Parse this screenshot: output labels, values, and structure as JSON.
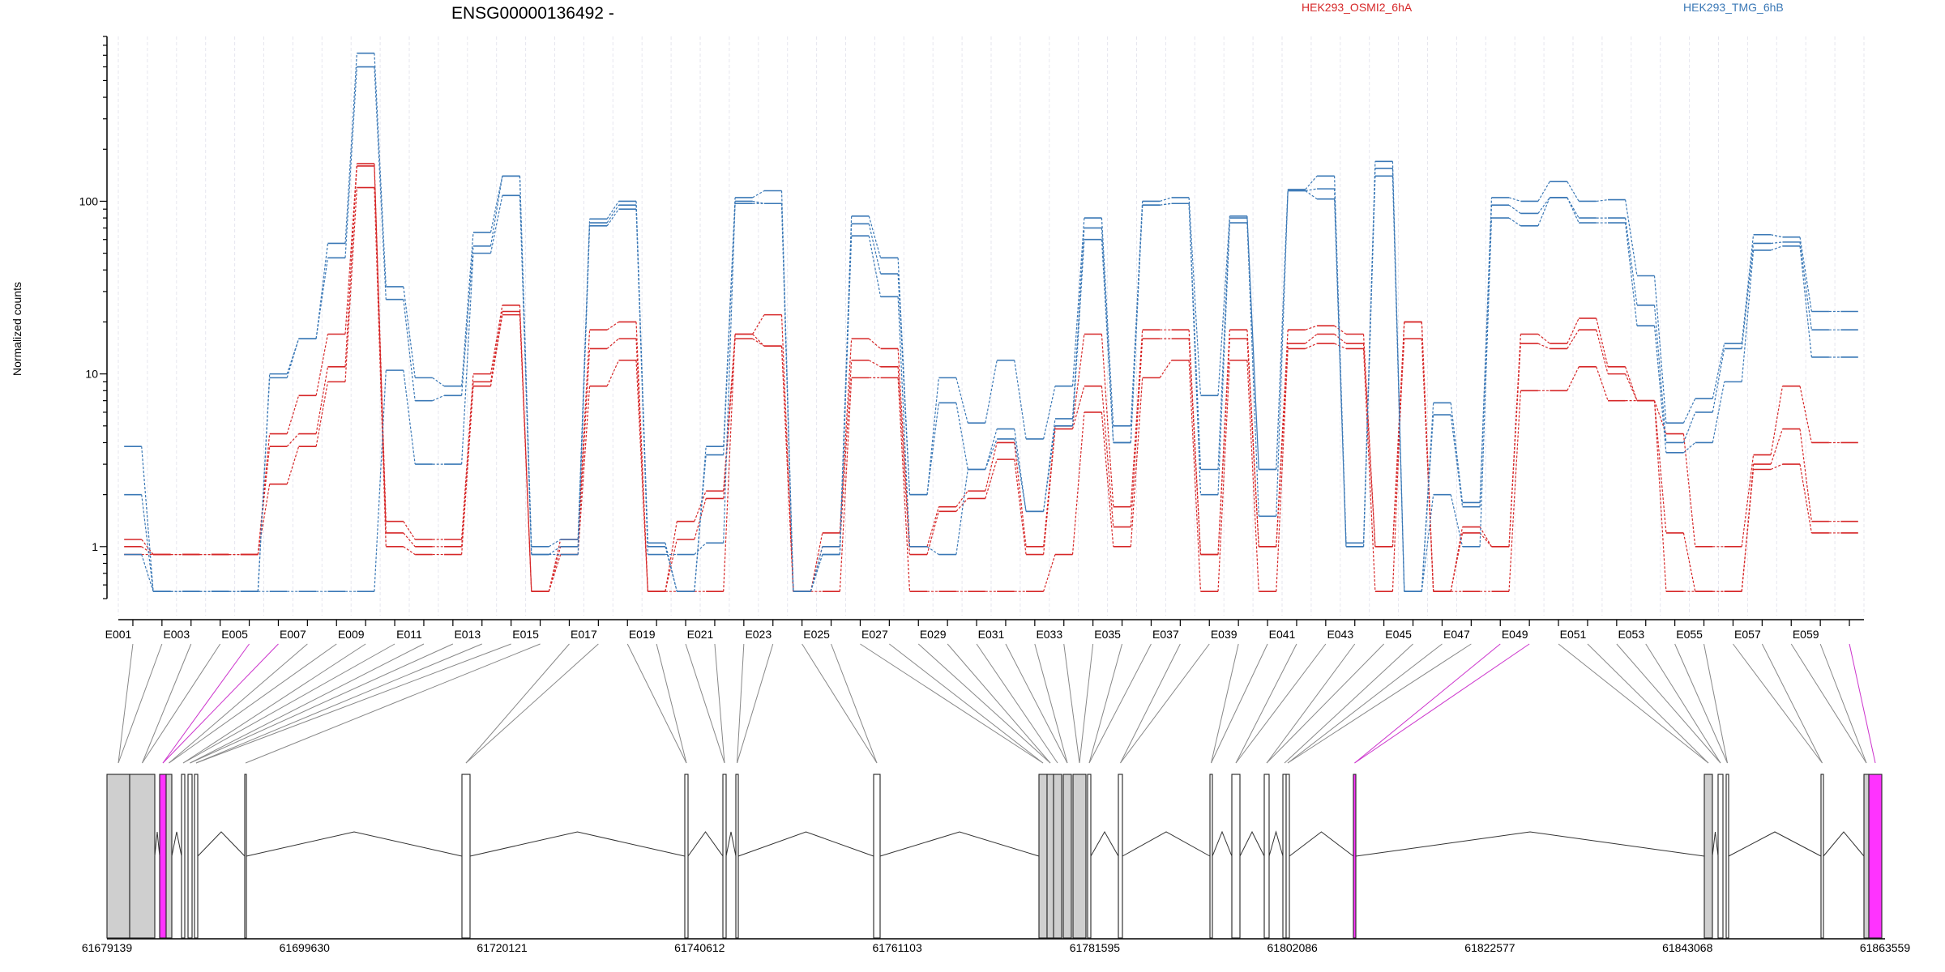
{
  "chart_data": {
    "type": "line",
    "title": "ENSG00000136492 -",
    "xlabel": "",
    "ylabel": "Normalized counts",
    "yscale": "log",
    "ylim": [
      0.5,
      900
    ],
    "y_ticks": [
      {
        "value": 1,
        "label": "1"
      },
      {
        "value": 10,
        "label": "10"
      },
      {
        "value": 100,
        "label": "100"
      }
    ],
    "legend": [
      {
        "name": "HEK293_OSMI2_6hA",
        "color": "#d62728"
      },
      {
        "name": "HEK293_TMG_6hB",
        "color": "#3a78b6"
      }
    ],
    "grid": true,
    "categories": [
      "E001",
      "E002",
      "E003",
      "E004",
      "E005",
      "E006",
      "E007",
      "E008",
      "E009",
      "E010",
      "E011",
      "E012",
      "E013",
      "E014",
      "E015",
      "E016",
      "E017",
      "E018",
      "E019",
      "E020",
      "E021",
      "E022",
      "E023",
      "E024",
      "E025",
      "E026",
      "E027",
      "E028",
      "E029",
      "E030",
      "E031",
      "E032",
      "E033",
      "E034",
      "E035",
      "E036",
      "E037",
      "E038",
      "E039",
      "E040",
      "E041",
      "E042",
      "E043",
      "E044",
      "E045",
      "E046",
      "E047",
      "E048",
      "E049",
      "E050",
      "E051",
      "E052",
      "E053",
      "E054",
      "E055",
      "E056",
      "E057",
      "E058",
      "E059",
      "E060"
    ],
    "tick_labels": [
      "E001",
      "E003",
      "E005",
      "E007",
      "E009",
      "E011",
      "E013",
      "E015",
      "E017",
      "E019",
      "E021",
      "E023",
      "E025",
      "E027",
      "E029",
      "E031",
      "E033",
      "E035",
      "E037",
      "E039",
      "E041",
      "E043",
      "E045",
      "E047",
      "E049",
      "E051",
      "E053",
      "E055",
      "E057",
      "E059"
    ],
    "series": [
      {
        "group": "HEK293_OSMI2_6hA",
        "color": "#d62728",
        "values": [
          1.1,
          0.9,
          0.9,
          0.9,
          0.9,
          4.5,
          7.5,
          17,
          165,
          1.4,
          1.1,
          1.1,
          10,
          25,
          0.55,
          1.1,
          18,
          20,
          0.55,
          1.4,
          2.1,
          17,
          22,
          0.55,
          1.2,
          16,
          14,
          1.0,
          1.7,
          2.1,
          4.0,
          1.0,
          5.0,
          17,
          1.7,
          18,
          18,
          0.9,
          18,
          1.0,
          18,
          19,
          17,
          1.0,
          20,
          0.55,
          1.3,
          1.0,
          17,
          15,
          21,
          11,
          7.0,
          4.5,
          1.0,
          1.0,
          3.4,
          8.5,
          4.0,
          4.0
        ]
      },
      {
        "group": "HEK293_OSMI2_6hA",
        "color": "#d62728",
        "values": [
          1.0,
          0.9,
          0.9,
          0.9,
          0.9,
          3.8,
          4.5,
          11,
          160,
          1.2,
          1.0,
          1.0,
          9.0,
          23,
          0.55,
          1.0,
          14,
          16,
          0.55,
          1.1,
          1.9,
          16,
          14.5,
          0.55,
          1.0,
          12,
          11,
          0.9,
          1.6,
          1.9,
          3.2,
          0.9,
          4.8,
          8.5,
          1.3,
          16,
          16,
          0.9,
          16,
          1.0,
          15,
          17,
          15,
          1.0,
          16,
          0.55,
          1.2,
          1.0,
          15,
          14,
          18,
          10,
          7.0,
          1.2,
          0.55,
          0.55,
          3.0,
          4.8,
          1.4,
          1.4
        ]
      },
      {
        "group": "HEK293_OSMI2_6hA",
        "color": "#d62728",
        "values": [
          0.9,
          0.9,
          0.9,
          0.9,
          0.9,
          2.3,
          3.8,
          9.0,
          120,
          1.0,
          0.9,
          0.9,
          8.5,
          22,
          0.55,
          0.9,
          8.5,
          12,
          0.55,
          0.55,
          0.55,
          17,
          14.5,
          0.55,
          0.55,
          9.5,
          9.5,
          0.55,
          0.55,
          0.55,
          0.55,
          0.55,
          0.9,
          6.0,
          1.0,
          9.5,
          12,
          0.55,
          12,
          0.55,
          14,
          15,
          14,
          0.55,
          20,
          0.55,
          0.55,
          0.55,
          8.0,
          8.0,
          11,
          7.0,
          7.0,
          0.55,
          0.55,
          0.55,
          2.8,
          3.0,
          1.2,
          1.2
        ]
      },
      {
        "group": "HEK293_TMG_6hB",
        "color": "#3a78b6",
        "values": [
          3.8,
          0.55,
          0.55,
          0.55,
          0.55,
          10,
          16,
          57,
          720,
          32,
          9.5,
          8.5,
          66,
          140,
          1.0,
          1.1,
          79,
          100,
          1.05,
          0.55,
          3.8,
          105,
          115,
          0.55,
          1.0,
          82,
          47,
          2.0,
          9.5,
          5.2,
          12,
          4.2,
          8.5,
          80,
          5.0,
          100,
          105,
          7.5,
          82,
          2.8,
          117,
          140,
          1.05,
          170,
          0.55,
          6.8,
          1.8,
          105,
          100,
          130,
          100,
          102,
          37,
          5.2,
          7.2,
          15,
          64,
          62,
          23,
          23
        ]
      },
      {
        "group": "HEK293_TMG_6hB",
        "color": "#3a78b6",
        "values": [
          2.0,
          0.55,
          0.55,
          0.55,
          0.55,
          9.5,
          16,
          47,
          600,
          27,
          7.0,
          7.5,
          55,
          140,
          0.9,
          1.0,
          75,
          95,
          1.0,
          0.55,
          3.4,
          100,
          97,
          0.55,
          0.9,
          74,
          38,
          2.0,
          6.8,
          2.8,
          4.8,
          1.6,
          5.5,
          70,
          4.0,
          95,
          97,
          2.8,
          80,
          2.8,
          115,
          118,
          1.0,
          155,
          0.55,
          5.8,
          1.7,
          95,
          85,
          105,
          80,
          80,
          25,
          4.0,
          6.0,
          14,
          57,
          58,
          18,
          18
        ]
      },
      {
        "group": "HEK293_TMG_6hB",
        "color": "#3a78b6",
        "values": [
          0.9,
          0.55,
          0.55,
          0.55,
          0.55,
          0.55,
          0.55,
          0.55,
          0.55,
          10.5,
          3.0,
          3.0,
          50,
          108,
          0.9,
          0.9,
          72,
          90,
          0.9,
          0.9,
          1.05,
          97,
          97,
          0.55,
          0.9,
          63,
          28,
          1.0,
          0.9,
          2.8,
          4.2,
          1.6,
          5.0,
          60,
          4.0,
          95,
          97,
          2.0,
          75,
          1.5,
          115,
          103,
          1.0,
          140,
          0.55,
          2.0,
          1.0,
          80,
          72,
          105,
          75,
          75,
          19,
          3.5,
          4.0,
          9.0,
          52,
          55,
          12.5,
          12.5
        ]
      }
    ]
  },
  "genome": {
    "coord_ticks": [
      "61679139",
      "61699630",
      "61720121",
      "61740612",
      "61761103",
      "61781595",
      "61802086",
      "61822577",
      "61843068",
      "61863559"
    ]
  }
}
